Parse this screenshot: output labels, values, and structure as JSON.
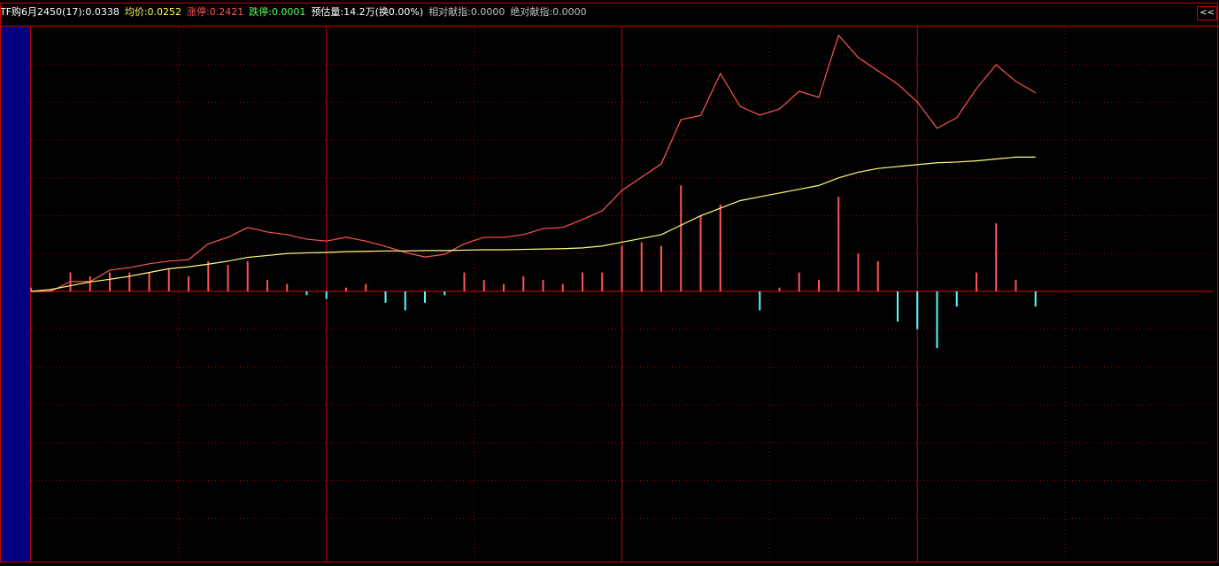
{
  "header": {
    "items": [
      {
        "text": "TF购6月2450(17):0.0338",
        "color": "#ffffff"
      },
      {
        "text": "均价:0.0252",
        "color": "#ffff54"
      },
      {
        "text": "涨停:0.2421",
        "color": "#ff5454"
      },
      {
        "text": "跌停:0.0001",
        "color": "#54ff54"
      },
      {
        "text": "预估量:14.2万(换0.00%)",
        "color": "#ffffff"
      },
      {
        "text": "相对献指:0.0000",
        "color": "#c0c0c0"
      },
      {
        "text": "绝对献指:0.0000",
        "color": "#c0c0c0"
      }
    ],
    "button": "<<"
  },
  "chart_data": {
    "type": "intraday",
    "x": [
      0,
      4,
      8,
      12,
      16,
      20,
      24,
      28,
      32,
      36,
      40,
      44,
      48,
      52,
      56,
      60,
      64,
      68,
      72,
      76,
      80,
      84,
      88,
      92,
      96,
      100,
      104,
      108,
      112,
      116,
      120,
      124,
      128,
      132,
      136,
      140,
      144,
      148,
      152,
      156,
      160,
      164,
      168,
      172,
      176,
      180,
      184,
      188,
      192,
      196,
      200,
      204
    ],
    "xlim": [
      0,
      240
    ],
    "ylim": [
      -7,
      7
    ],
    "series": [
      {
        "kind": "line",
        "color": "#ff5454",
        "values": [
          0,
          0,
          0.26,
          0.26,
          0.56,
          0.63,
          0.73,
          0.8,
          0.84,
          1.26,
          1.43,
          1.69,
          1.57,
          1.5,
          1.38,
          1.33,
          1.43,
          1.33,
          1.19,
          1.03,
          0.91,
          0.98,
          1.26,
          1.43,
          1.43,
          1.5,
          1.66,
          1.69,
          1.9,
          2.13,
          2.67,
          3.02,
          3.37,
          4.54,
          4.65,
          5.76,
          4.89,
          4.66,
          4.82,
          5.29,
          5.13,
          6.77,
          6.18,
          5.83,
          5.48,
          5.01,
          4.31,
          4.59,
          5.36,
          5.99,
          5.55,
          5.25
        ]
      },
      {
        "kind": "line",
        "color": "#ffff80",
        "values": [
          0,
          0.05,
          0.15,
          0.25,
          0.32,
          0.4,
          0.5,
          0.6,
          0.65,
          0.72,
          0.8,
          0.9,
          0.95,
          1.0,
          1.02,
          1.03,
          1.05,
          1.06,
          1.07,
          1.07,
          1.08,
          1.08,
          1.09,
          1.1,
          1.1,
          1.11,
          1.12,
          1.13,
          1.15,
          1.2,
          1.3,
          1.4,
          1.5,
          1.75,
          2.0,
          2.2,
          2.4,
          2.5,
          2.6,
          2.7,
          2.8,
          3.0,
          3.15,
          3.25,
          3.3,
          3.35,
          3.4,
          3.42,
          3.45,
          3.5,
          3.55,
          3.55
        ]
      },
      {
        "kind": "bar",
        "up_color": "#ff5454",
        "down_color": "#54ffff",
        "values": [
          0.1,
          0.05,
          0.5,
          0.4,
          0.5,
          0.5,
          0.5,
          0.6,
          0.4,
          0.8,
          0.7,
          0.8,
          0.3,
          0.2,
          -0.1,
          -0.2,
          0.1,
          0.2,
          -0.3,
          -0.5,
          -0.3,
          -0.1,
          0.5,
          0.3,
          0.2,
          0.4,
          0.3,
          0.2,
          0.5,
          0.5,
          1.2,
          1.3,
          1.2,
          2.8,
          2.0,
          2.3,
          0.0,
          -0.5,
          0.1,
          0.5,
          0.3,
          2.5,
          1.0,
          0.8,
          -0.8,
          -1.0,
          -1.5,
          -0.4,
          0.5,
          1.8,
          0.3,
          -0.4
        ]
      }
    ]
  }
}
